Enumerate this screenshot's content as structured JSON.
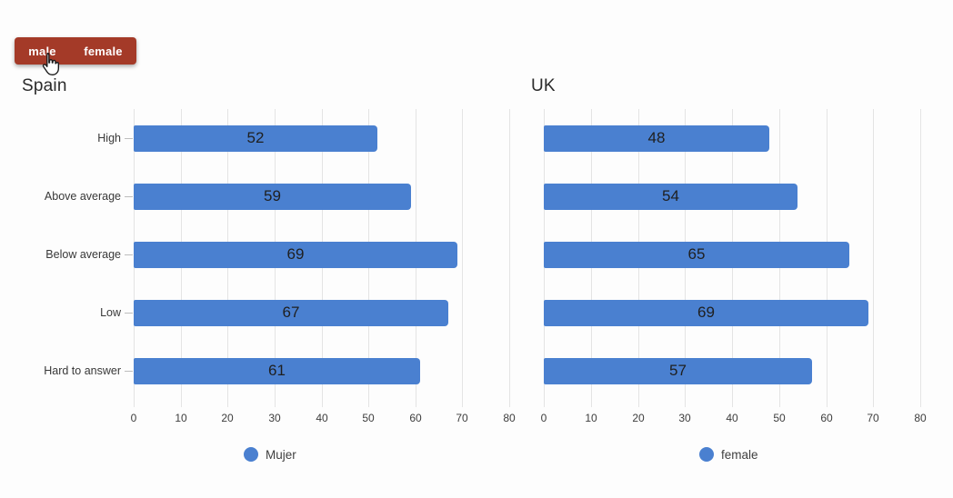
{
  "toggle": {
    "options": [
      {
        "label": "male"
      },
      {
        "label": "female"
      }
    ]
  },
  "chart_data": [
    {
      "type": "bar",
      "orientation": "horizontal",
      "title": "Spain",
      "categories": [
        "High",
        "Above average",
        "Below average",
        "Low",
        "Hard to answer"
      ],
      "values": [
        52,
        59,
        69,
        67,
        61
      ],
      "xlim": [
        0,
        80
      ],
      "xticks": [
        0,
        10,
        20,
        30,
        40,
        50,
        60,
        70,
        80
      ],
      "grid": true,
      "show_category_labels": true,
      "legend": {
        "label": "Mujer",
        "position": "bottom"
      },
      "data_labels": "inside-center"
    },
    {
      "type": "bar",
      "orientation": "horizontal",
      "title": "UK",
      "categories": [
        "High",
        "Above average",
        "Below average",
        "Low",
        "Hard to answer"
      ],
      "values": [
        48,
        54,
        65,
        69,
        57
      ],
      "xlim": [
        0,
        80
      ],
      "xticks": [
        0,
        10,
        20,
        30,
        40,
        50,
        60,
        70,
        80
      ],
      "grid": true,
      "show_category_labels": false,
      "legend": {
        "label": "female",
        "position": "bottom"
      },
      "data_labels": "inside-center"
    }
  ],
  "colors": {
    "bar": "#4a80d0",
    "button_bg": "#a43a28",
    "button_text": "#ffffff",
    "grid": "#e4e4e4",
    "background": "#fdfdfd"
  }
}
